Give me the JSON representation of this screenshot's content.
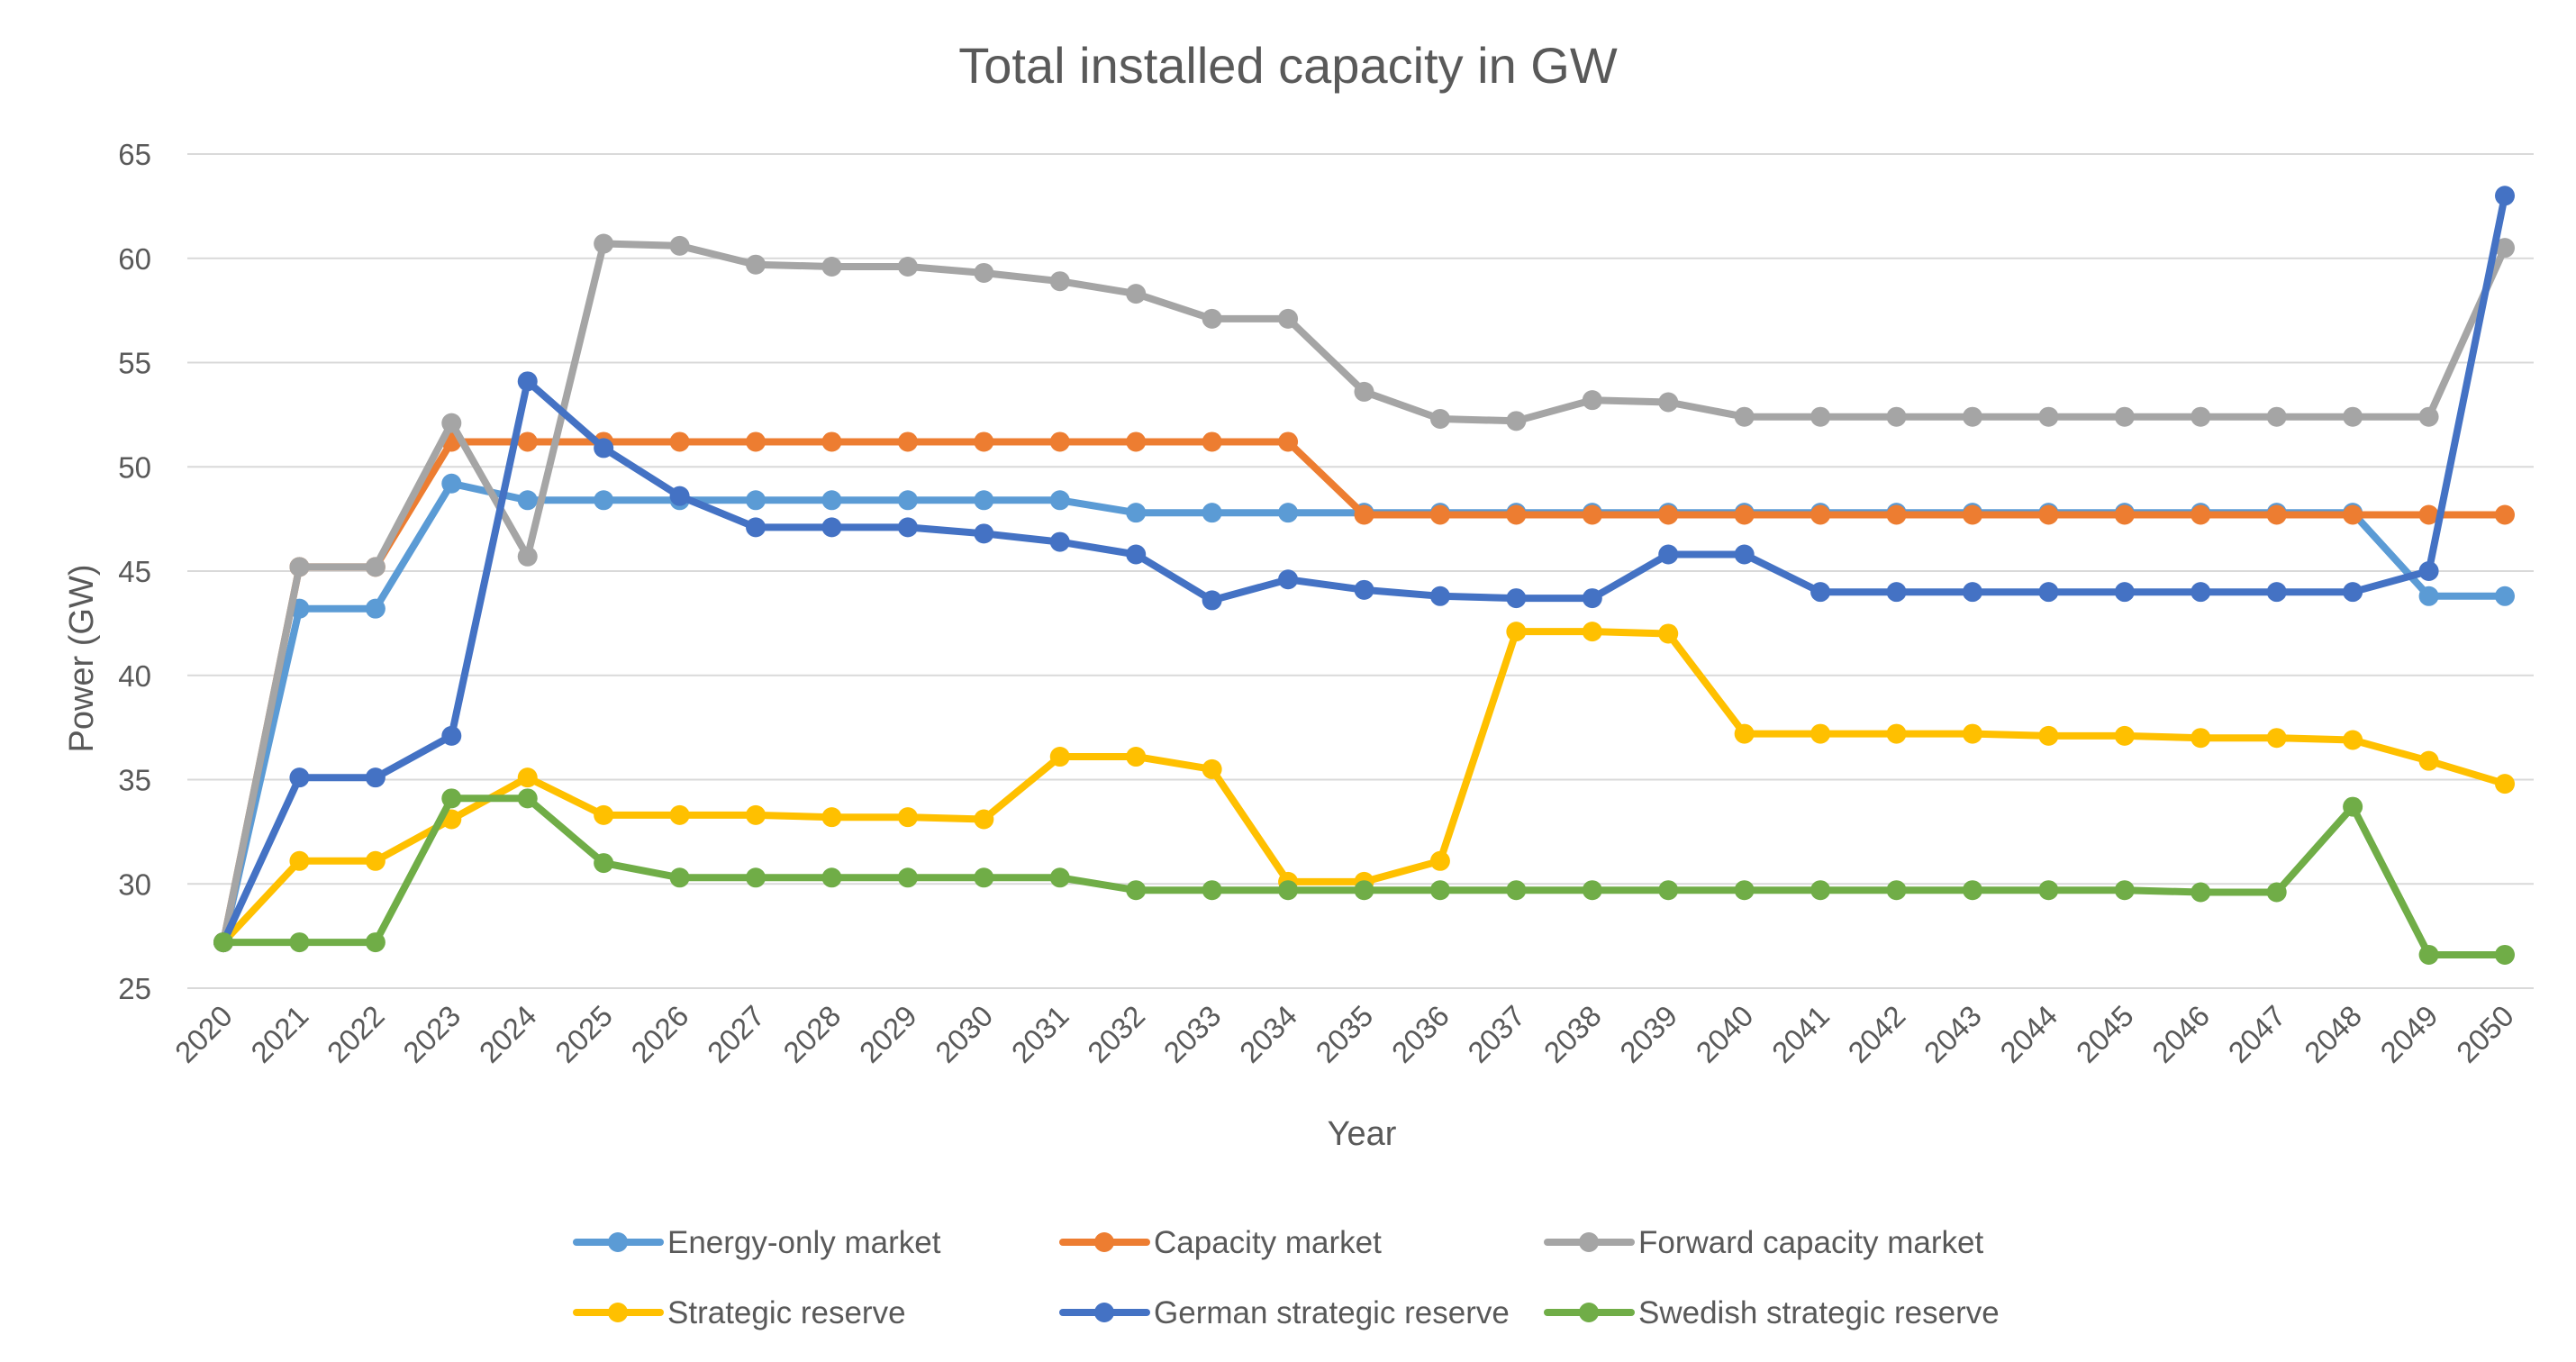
{
  "chart_data": {
    "type": "line",
    "title": "Total installed capacity in GW",
    "xlabel": "Year",
    "ylabel": "Power (GW)",
    "ylim": [
      25,
      65
    ],
    "ytick_step": 5,
    "grid": "horizontal",
    "legend_position": "bottom",
    "marker": "circle",
    "x": [
      "2020",
      "2021",
      "2022",
      "2023",
      "2024",
      "2025",
      "2026",
      "2027",
      "2028",
      "2029",
      "2030",
      "2031",
      "2032",
      "2033",
      "2034",
      "2035",
      "2036",
      "2037",
      "2038",
      "2039",
      "2040",
      "2041",
      "2042",
      "2043",
      "2044",
      "2045",
      "2046",
      "2047",
      "2048",
      "2049",
      "2050"
    ],
    "series": [
      {
        "name": "Energy-only market",
        "color": "#5b9bd5",
        "values": [
          27.2,
          43.2,
          43.2,
          49.2,
          48.4,
          48.4,
          48.4,
          48.4,
          48.4,
          48.4,
          48.4,
          48.4,
          47.8,
          47.8,
          47.8,
          47.8,
          47.8,
          47.8,
          47.8,
          47.8,
          47.8,
          47.8,
          47.8,
          47.8,
          47.8,
          47.8,
          47.8,
          47.8,
          47.8,
          43.8,
          43.8
        ]
      },
      {
        "name": "Capacity market",
        "color": "#ed7d31",
        "values": [
          27.2,
          45.2,
          45.2,
          51.2,
          51.2,
          51.2,
          51.2,
          51.2,
          51.2,
          51.2,
          51.2,
          51.2,
          51.2,
          51.2,
          51.2,
          47.7,
          47.7,
          47.7,
          47.7,
          47.7,
          47.7,
          47.7,
          47.7,
          47.7,
          47.7,
          47.7,
          47.7,
          47.7,
          47.7,
          47.7,
          47.7
        ]
      },
      {
        "name": "Forward capacity market",
        "color": "#a5a5a5",
        "values": [
          27.2,
          45.2,
          45.2,
          52.1,
          45.7,
          60.7,
          60.6,
          59.7,
          59.6,
          59.6,
          59.3,
          58.9,
          58.3,
          57.1,
          57.1,
          53.6,
          52.3,
          52.2,
          53.2,
          53.1,
          52.4,
          52.4,
          52.4,
          52.4,
          52.4,
          52.4,
          52.4,
          52.4,
          52.4,
          52.4,
          60.5
        ]
      },
      {
        "name": "Strategic reserve",
        "color": "#ffc000",
        "values": [
          27.2,
          31.1,
          31.1,
          33.1,
          35.1,
          33.3,
          33.3,
          33.3,
          33.2,
          33.2,
          33.1,
          36.1,
          36.1,
          35.5,
          30.1,
          30.1,
          31.1,
          42.1,
          42.1,
          42.0,
          37.2,
          37.2,
          37.2,
          37.2,
          37.1,
          37.1,
          37.0,
          37.0,
          36.9,
          35.9,
          34.8
        ]
      },
      {
        "name": "German strategic reserve",
        "color": "#4472c4",
        "values": [
          27.2,
          35.1,
          35.1,
          37.1,
          54.1,
          50.9,
          48.6,
          47.1,
          47.1,
          47.1,
          46.8,
          46.4,
          45.8,
          43.6,
          44.6,
          44.1,
          43.8,
          43.7,
          43.7,
          45.8,
          45.8,
          44.0,
          44.0,
          44.0,
          44.0,
          44.0,
          44.0,
          44.0,
          44.0,
          45.0,
          63.0
        ]
      },
      {
        "name": "Swedish strategic reserve",
        "color": "#70ad47",
        "values": [
          27.2,
          27.2,
          27.2,
          34.1,
          34.1,
          31.0,
          30.3,
          30.3,
          30.3,
          30.3,
          30.3,
          30.3,
          29.7,
          29.7,
          29.7,
          29.7,
          29.7,
          29.7,
          29.7,
          29.7,
          29.7,
          29.7,
          29.7,
          29.7,
          29.7,
          29.7,
          29.6,
          29.6,
          33.7,
          26.6,
          26.6
        ]
      }
    ]
  }
}
